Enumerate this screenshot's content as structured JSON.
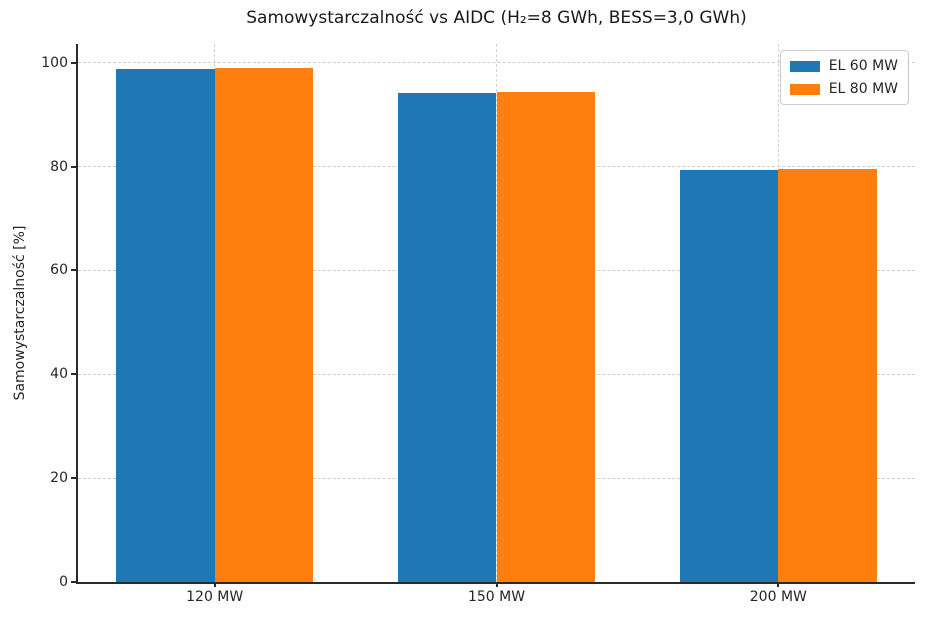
{
  "chart_data": {
    "type": "bar",
    "title": "Samowystarczalność vs AIDC (H₂=8 GWh, BESS=3,0 GWh)",
    "xlabel": "",
    "ylabel": "Samowystarczalność [%]",
    "categories": [
      "120 MW",
      "150 MW",
      "200 MW"
    ],
    "series": [
      {
        "name": "EL 60 MW",
        "color": "#1f77b4",
        "values": [
          98.7,
          94.2,
          79.3
        ]
      },
      {
        "name": "EL 80 MW",
        "color": "#ff7f0e",
        "values": [
          98.9,
          94.4,
          79.5
        ]
      }
    ],
    "ylim": [
      0,
      103.6
    ],
    "yticks": [
      0,
      20,
      40,
      60,
      80,
      100
    ],
    "grid": true,
    "grid_linestyle": "dashed",
    "legend_position": "upper right",
    "bar_width_fraction": 0.35
  },
  "colors": {
    "bar_blue": "#1f77b4",
    "bar_orange": "#ff7f0e",
    "grid": "#cdcdcd",
    "spine": "#2a2a2a",
    "text": "#262626",
    "legend_border": "#cccccc"
  }
}
